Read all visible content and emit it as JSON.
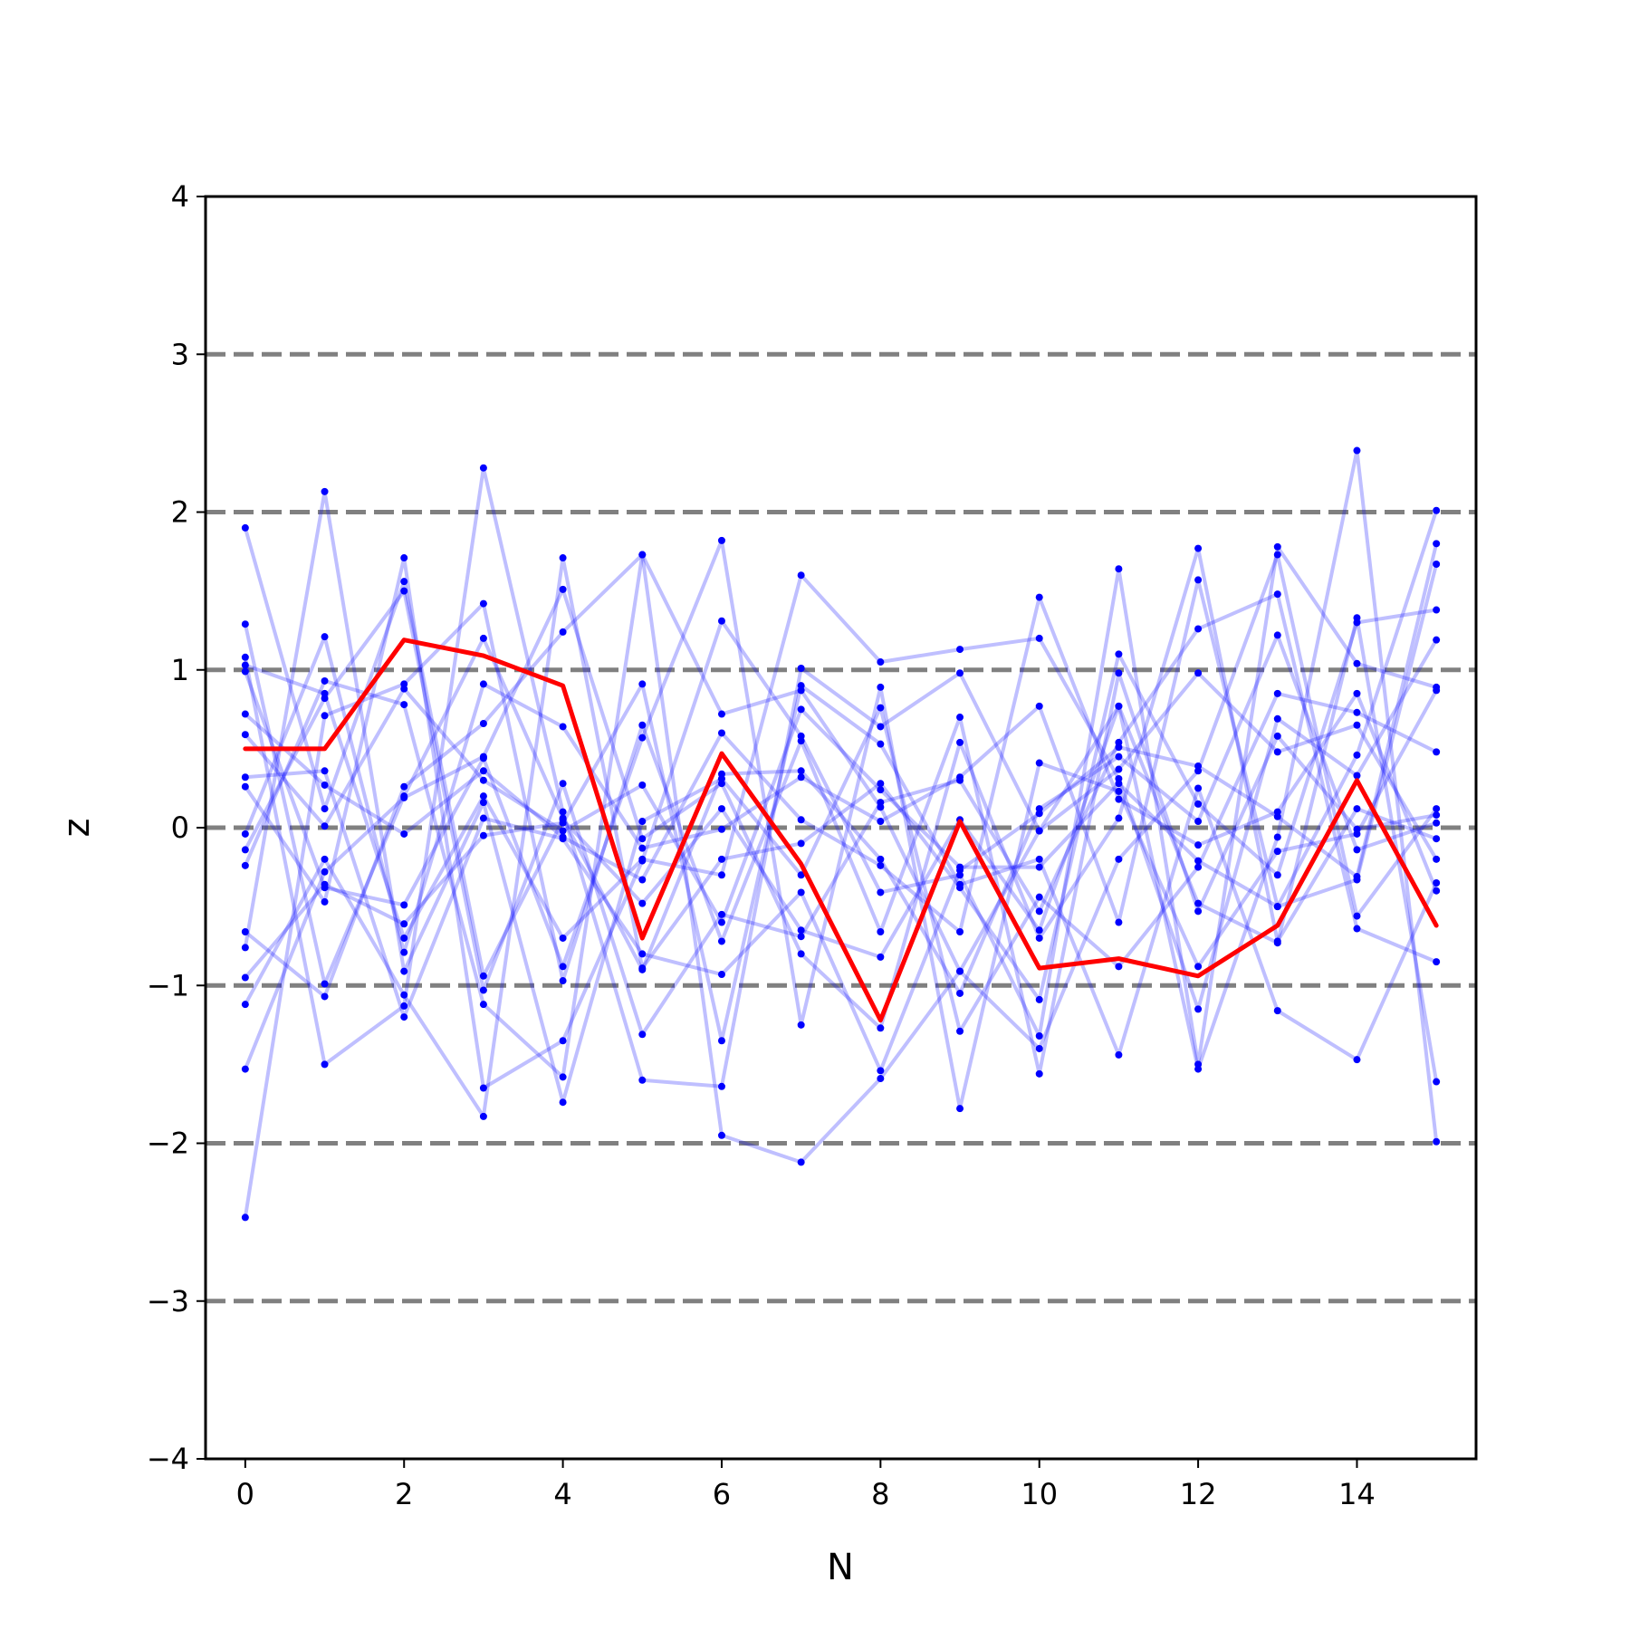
{
  "chart_data": {
    "type": "line",
    "title": "",
    "xlabel": "N",
    "ylabel": "z",
    "xlim": [
      -0.5,
      15.5
    ],
    "ylim": [
      -4,
      4
    ],
    "xticks": [
      0,
      2,
      4,
      6,
      8,
      10,
      12,
      14
    ],
    "yticks": [
      -4,
      -3,
      -2,
      -1,
      0,
      1,
      2,
      3,
      4
    ],
    "ytick_labels": [
      "−4",
      "−3",
      "−2",
      "−1",
      "0",
      "1",
      "2",
      "3",
      "4"
    ],
    "reference_lines": [
      -3,
      -2,
      -1,
      0,
      1,
      2,
      3
    ],
    "reference_line_color": "#808080",
    "sample_color": "#0000ff",
    "mean_color": "#ff0000",
    "x": [
      0,
      1,
      2,
      3,
      4,
      5,
      6,
      7,
      8,
      9,
      10,
      11,
      12,
      13,
      14,
      15
    ],
    "mean_series": {
      "values": [
        0.5,
        0.5,
        1.19,
        1.09,
        0.9,
        -0.7,
        0.47,
        -0.23,
        -1.22,
        0.04,
        -0.89,
        -0.83,
        -0.94,
        -0.62,
        0.3,
        -0.62
      ]
    },
    "samples": [
      {
        "values": [
          1.9,
          0.12,
          1.56,
          -0.94,
          0.05,
          -0.48,
          0.12,
          -0.65,
          -0.82,
          0.05,
          -0.65,
          0.77,
          -0.48,
          -0.73,
          1.33,
          -1.61
        ]
      },
      {
        "values": [
          1.29,
          -0.99,
          0.2,
          1.2,
          0.06,
          -0.9,
          0.34,
          0.36,
          -0.2,
          -1.05,
          0.12,
          0.45,
          0.04,
          1.22,
          -0.14,
          0.03
        ]
      },
      {
        "values": [
          1.03,
          0.85,
          -0.7,
          0.2,
          -0.7,
          -0.2,
          -0.3,
          1.6,
          1.05,
          1.13,
          1.2,
          0.31,
          -1.15,
          0.69,
          0.33,
          1.19
        ]
      },
      {
        "values": [
          0.59,
          0.01,
          0.88,
          0.3,
          -0.02,
          0.27,
          -0.6,
          0.75,
          0.24,
          -0.25,
          -0.25,
          0.28,
          -0.21,
          -0.5,
          0.46,
          2.01
        ]
      },
      {
        "values": [
          0.32,
          0.36,
          -1.2,
          0.06,
          -0.07,
          -0.8,
          -0.93,
          -0.41,
          -1.54,
          -0.27,
          0.09,
          0.51,
          0.39,
          0.07,
          -0.31,
          1.8
        ]
      },
      {
        "values": [
          0.26,
          -0.47,
          1.71,
          -1.65,
          -1.35,
          -0.21,
          1.31,
          0.58,
          -0.41,
          -0.3,
          -1.32,
          1.64,
          -1.5,
          1.78,
          1.04,
          0.89
        ]
      },
      {
        "values": [
          -0.04,
          1.21,
          -0.79,
          0.91,
          0.64,
          -0.13,
          -0.01,
          0.32,
          0.04,
          0.32,
          0.77,
          -0.6,
          1.57,
          -0.5,
          -0.33,
          1.67
        ]
      },
      {
        "values": [
          -0.66,
          -1.07,
          0.26,
          0.66,
          1.24,
          1.73,
          -1.95,
          -2.12,
          -1.59,
          -0.91,
          -0.02,
          0.77,
          -1.53,
          -0.06,
          2.39,
          -1.99
        ]
      },
      {
        "values": [
          -0.76,
          2.13,
          -0.91,
          0.16,
          -1.74,
          0.04,
          0.31,
          -0.3,
          0.76,
          -1.29,
          -0.44,
          -0.88,
          -0.25,
          0.85,
          0.73,
          0.48
        ]
      },
      {
        "values": [
          -0.95,
          -0.36,
          -0.61,
          -0.05,
          0.03,
          0.91,
          -1.35,
          0.9,
          0.53,
          -0.36,
          -0.2,
          -1.44,
          0.25,
          -1.16,
          -1.47,
          -0.35
        ]
      },
      {
        "values": [
          -1.12,
          -0.2,
          -1.06,
          -1.83,
          1.71,
          -0.89,
          -0.2,
          -0.1,
          0.28,
          -0.38,
          -1.09,
          1.1,
          0.15,
          -0.3,
          1.3,
          1.38
        ]
      },
      {
        "values": [
          -2.47,
          0.71,
          0.91,
          1.42,
          -0.97,
          0.65,
          -0.72,
          0.55,
          -0.66,
          0.7,
          -1.56,
          0.98,
          -0.53,
          0.58,
          -0.01,
          0.08
        ]
      },
      {
        "values": [
          0.72,
          0.27,
          -0.04,
          0.36,
          -0.06,
          -0.33,
          0.6,
          0.05,
          -0.24,
          -0.66,
          1.46,
          0.18,
          -0.11,
          0.1,
          0.85,
          -0.4
        ]
      },
      {
        "values": [
          1.08,
          -1.5,
          -1.13,
          2.28,
          0.1,
          -1.6,
          -1.64,
          1.01,
          0.64,
          0.98,
          -0.02,
          0.37,
          0.98,
          0.48,
          0.65,
          -0.2
        ]
      },
      {
        "values": [
          -0.24,
          0.93,
          0.78,
          -1.12,
          -1.58,
          1.73,
          0.72,
          0.87,
          0.13,
          -0.91,
          -1.4,
          -0.2,
          0.36,
          1.73,
          -0.56,
          0.12
        ]
      },
      {
        "values": [
          -1.53,
          -0.28,
          0.19,
          0.45,
          1.51,
          -0.07,
          0.28,
          -0.8,
          -1.27,
          0.54,
          -0.7,
          0.06,
          1.77,
          -0.72,
          0.12,
          -0.07
        ]
      },
      {
        "values": [
          0.99,
          -0.38,
          -0.49,
          0.44,
          -0.88,
          0.57,
          1.82,
          -1.25,
          0.89,
          -1.78,
          0.41,
          0.23,
          -0.88,
          -0.15,
          -0.04,
          0.87
        ]
      },
      {
        "values": [
          -0.14,
          0.82,
          1.5,
          -1.03,
          0.28,
          -1.31,
          -0.55,
          -0.69,
          0.16,
          0.3,
          -0.53,
          0.54,
          1.26,
          1.48,
          -0.64,
          -0.85
        ]
      }
    ]
  }
}
